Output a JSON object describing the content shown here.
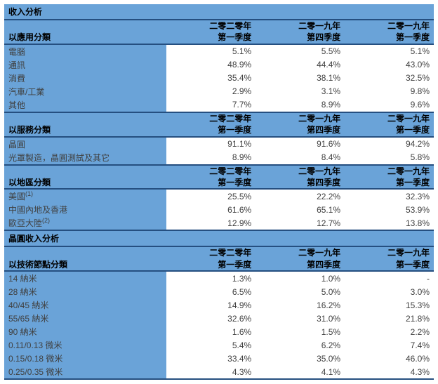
{
  "colors": {
    "header_bg": "#6aa3d8",
    "border": "#254f80",
    "text": "#404040"
  },
  "periods": {
    "p1_y": "二零二零年",
    "p1_q": "第一季度",
    "p2_y": "二零一九年",
    "p2_q": "第四季度",
    "p3_y": "二零一九年",
    "p3_q": "第一季度"
  },
  "section1_title": "收入分析",
  "group1_title": "以應用分類",
  "group1_rows": [
    {
      "label": "電腦",
      "v1": "5.1%",
      "v2": "5.5%",
      "v3": "5.1%"
    },
    {
      "label": "通訊",
      "v1": "48.9%",
      "v2": "44.4%",
      "v3": "43.0%"
    },
    {
      "label": "消費",
      "v1": "35.4%",
      "v2": "38.1%",
      "v3": "32.5%"
    },
    {
      "label": "汽車/工業",
      "v1": "2.9%",
      "v2": "3.1%",
      "v3": "9.8%"
    },
    {
      "label": "其他",
      "v1": "7.7%",
      "v2": "8.9%",
      "v3": "9.6%"
    }
  ],
  "group2_title": "以服務分類",
  "group2_rows": [
    {
      "label": "晶圓",
      "v1": "91.1%",
      "v2": "91.6%",
      "v3": "94.2%"
    },
    {
      "label": "光罩製造，晶圓測試及其它",
      "v1": "8.9%",
      "v2": "8.4%",
      "v3": "5.8%"
    }
  ],
  "group3_title": "以地區分類",
  "group3_rows": [
    {
      "label": "美國",
      "sup": "(1)",
      "v1": "25.5%",
      "v2": "22.2%",
      "v3": "32.3%"
    },
    {
      "label": "中國內地及香港",
      "sup": "",
      "v1": "61.6%",
      "v2": "65.1%",
      "v3": "53.9%"
    },
    {
      "label": "歐亞大陸",
      "sup": "(2)",
      "v1": "12.9%",
      "v2": "12.7%",
      "v3": "13.8%"
    }
  ],
  "section2_title": "晶圓收入分析",
  "group4_title": "以技術節點分類",
  "group4_rows": [
    {
      "label": "14 納米",
      "v1": "1.3%",
      "v2": "1.0%",
      "v3": "-"
    },
    {
      "label": "28 納米",
      "v1": "6.5%",
      "v2": "5.0%",
      "v3": "3.0%"
    },
    {
      "label": "40/45 納米",
      "v1": "14.9%",
      "v2": "16.2%",
      "v3": "15.3%"
    },
    {
      "label": "55/65 納米",
      "v1": "32.6%",
      "v2": "31.0%",
      "v3": "21.8%"
    },
    {
      "label": "90 納米",
      "v1": "1.6%",
      "v2": "1.5%",
      "v3": "2.2%"
    },
    {
      "label": "0.11/0.13 微米",
      "v1": "5.4%",
      "v2": "6.2%",
      "v3": "7.4%"
    },
    {
      "label": "0.15/0.18 微米",
      "v1": "33.4%",
      "v2": "35.0%",
      "v3": "46.0%"
    },
    {
      "label": "0.25/0.35 微米",
      "v1": "4.3%",
      "v2": "4.1%",
      "v3": "4.3%"
    }
  ]
}
